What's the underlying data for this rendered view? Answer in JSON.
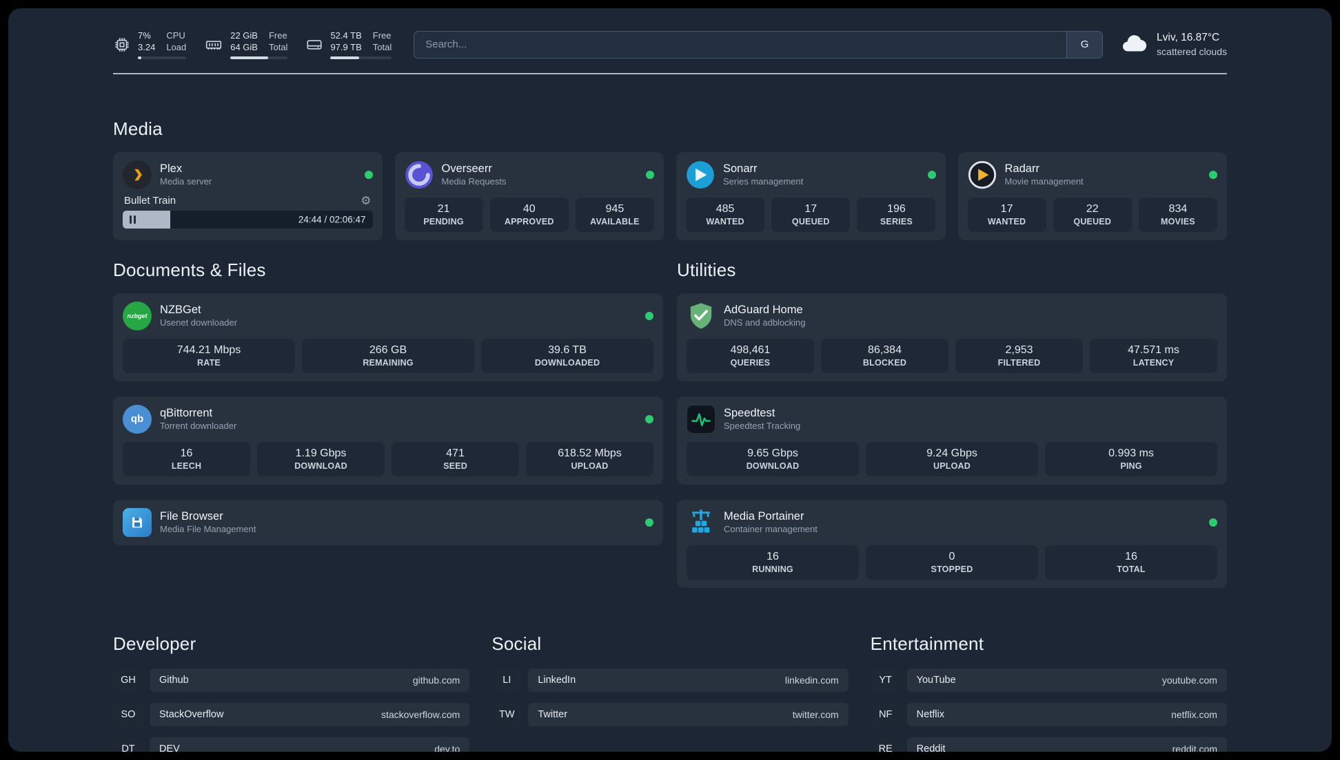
{
  "colors": {
    "status_online": "#2ecc71",
    "plex_gold": "#e5a00d",
    "adguard_green": "#67b279",
    "sonarr_blue": "#1c9fd7",
    "radarr_gold": "#f0b429",
    "portainer_blue": "#1fa9e4",
    "nzbget_green": "#27a744",
    "qbittorrent_blue": "#4a8fd4",
    "overseerr_purple": "#5a52d5",
    "speedtest_green": "#18c47a"
  },
  "icons": {
    "gear": "⚙",
    "nzbget": "nzbget",
    "qbittorrent": "qb"
  },
  "topbar": {
    "cpu": {
      "pct": "7%",
      "load": "3.24",
      "label1": "CPU",
      "label2": "Load",
      "fill": 7
    },
    "memory": {
      "free": "22 GiB",
      "total": "64 GiB",
      "label1": "Free",
      "label2": "Total",
      "fill": 66
    },
    "disk": {
      "free": "52.4 TB",
      "total": "97.9 TB",
      "label1": "Free",
      "label2": "Total",
      "fill": 47
    },
    "search": {
      "placeholder": "Search...",
      "provider_label": "G"
    },
    "weather": {
      "location": "Lviv, 16.87°C",
      "condition": "scattered clouds"
    }
  },
  "media": {
    "title": "Media",
    "plex": {
      "name": "Plex",
      "subtitle": "Media server",
      "now_playing": "Bullet Train",
      "time": "24:44 / 02:06:47",
      "progress_pct": 19
    },
    "overseerr": {
      "name": "Overseerr",
      "subtitle": "Media Requests",
      "stats": [
        {
          "value": "21",
          "label": "PENDING"
        },
        {
          "value": "40",
          "label": "APPROVED"
        },
        {
          "value": "945",
          "label": "AVAILABLE"
        }
      ]
    },
    "sonarr": {
      "name": "Sonarr",
      "subtitle": "Series management",
      "stats": [
        {
          "value": "485",
          "label": "WANTED"
        },
        {
          "value": "17",
          "label": "QUEUED"
        },
        {
          "value": "196",
          "label": "SERIES"
        }
      ]
    },
    "radarr": {
      "name": "Radarr",
      "subtitle": "Movie management",
      "stats": [
        {
          "value": "17",
          "label": "WANTED"
        },
        {
          "value": "22",
          "label": "QUEUED"
        },
        {
          "value": "834",
          "label": "MOVIES"
        }
      ]
    }
  },
  "documents": {
    "title": "Documents & Files",
    "nzbget": {
      "name": "NZBGet",
      "subtitle": "Usenet downloader",
      "stats": [
        {
          "value": "744.21 Mbps",
          "label": "RATE"
        },
        {
          "value": "266 GB",
          "label": "REMAINING"
        },
        {
          "value": "39.6 TB",
          "label": "DOWNLOADED"
        }
      ]
    },
    "qbittorrent": {
      "name": "qBittorrent",
      "subtitle": "Torrent downloader",
      "stats": [
        {
          "value": "16",
          "label": "LEECH"
        },
        {
          "value": "1.19 Gbps",
          "label": "DOWNLOAD"
        },
        {
          "value": "471",
          "label": "SEED"
        },
        {
          "value": "618.52 Mbps",
          "label": "UPLOAD"
        }
      ]
    },
    "filebrowser": {
      "name": "File Browser",
      "subtitle": "Media File Management"
    }
  },
  "utilities": {
    "title": "Utilities",
    "adguard": {
      "name": "AdGuard Home",
      "subtitle": "DNS and adblocking",
      "stats": [
        {
          "value": "498,461",
          "label": "QUERIES"
        },
        {
          "value": "86,384",
          "label": "BLOCKED"
        },
        {
          "value": "2,953",
          "label": "FILTERED"
        },
        {
          "value": "47.571 ms",
          "label": "LATENCY"
        }
      ]
    },
    "speedtest": {
      "name": "Speedtest",
      "subtitle": "Speedtest Tracking",
      "stats": [
        {
          "value": "9.65 Gbps",
          "label": "DOWNLOAD"
        },
        {
          "value": "9.24 Gbps",
          "label": "UPLOAD"
        },
        {
          "value": "0.993 ms",
          "label": "PING"
        }
      ]
    },
    "portainer": {
      "name": "Media Portainer",
      "subtitle": "Container management",
      "stats": [
        {
          "value": "16",
          "label": "RUNNING"
        },
        {
          "value": "0",
          "label": "STOPPED"
        },
        {
          "value": "16",
          "label": "TOTAL"
        }
      ]
    }
  },
  "bookmarks": {
    "developer": {
      "title": "Developer",
      "items": [
        {
          "abbr": "GH",
          "name": "Github",
          "url": "github.com"
        },
        {
          "abbr": "SO",
          "name": "StackOverflow",
          "url": "stackoverflow.com"
        },
        {
          "abbr": "DT",
          "name": "DEV",
          "url": "dev.to"
        }
      ]
    },
    "social": {
      "title": "Social",
      "items": [
        {
          "abbr": "LI",
          "name": "LinkedIn",
          "url": "linkedin.com"
        },
        {
          "abbr": "TW",
          "name": "Twitter",
          "url": "twitter.com"
        }
      ]
    },
    "entertainment": {
      "title": "Entertainment",
      "items": [
        {
          "abbr": "YT",
          "name": "YouTube",
          "url": "youtube.com"
        },
        {
          "abbr": "NF",
          "name": "Netflix",
          "url": "netflix.com"
        },
        {
          "abbr": "RE",
          "name": "Reddit",
          "url": "reddit.com"
        }
      ]
    }
  }
}
